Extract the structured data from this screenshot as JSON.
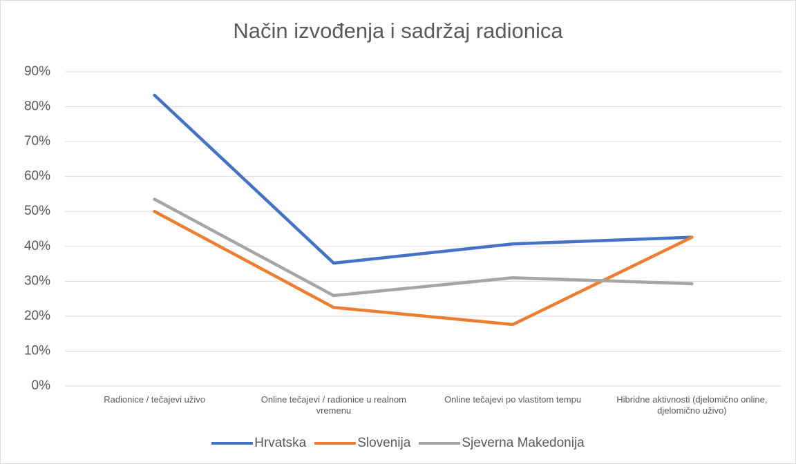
{
  "chart_data": {
    "type": "line",
    "title": "Način izvođenja i sadržaj radionica",
    "categories": [
      "Radionice / tečajevi uživo",
      "Online tečajevi / radionice u realnom vremenu",
      "Online tečajevi po vlastitom tempu",
      "Hibridne aktivnosti (djelomično online, djelomično uživo)"
    ],
    "series": [
      {
        "name": "Hrvatska",
        "color": "#4472c4",
        "values": [
          83.3,
          35.2,
          40.7,
          42.6
        ]
      },
      {
        "name": "Slovenija",
        "color": "#ed7d31",
        "values": [
          50,
          22.5,
          17.6,
          42.6
        ]
      },
      {
        "name": "Sjeverna Makedonija",
        "color": "#a5a5a5",
        "values": [
          53.5,
          25.9,
          31,
          29.3
        ]
      }
    ],
    "ylim": [
      0,
      90
    ],
    "yticks": [
      {
        "value": 0,
        "label": "0%"
      },
      {
        "value": 10,
        "label": "10%"
      },
      {
        "value": 20,
        "label": "20%"
      },
      {
        "value": 30,
        "label": "30%"
      },
      {
        "value": 40,
        "label": "40%"
      },
      {
        "value": 50,
        "label": "50%"
      },
      {
        "value": 60,
        "label": "60%"
      },
      {
        "value": 70,
        "label": "70%"
      },
      {
        "value": 80,
        "label": "80%"
      },
      {
        "value": 90,
        "label": "90%"
      }
    ],
    "grid": true,
    "legend": "bottom"
  }
}
